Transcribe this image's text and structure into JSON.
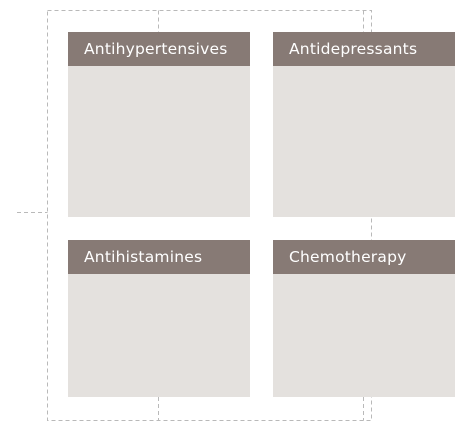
{
  "diagram": {
    "colors": {
      "header_fill": "#877a75",
      "body_fill": "#e4e1de",
      "connector_stroke": "#b9b9b9",
      "header_text": "#ffffff"
    },
    "categories": [
      {
        "label": "Antihypertensives"
      },
      {
        "label": "Antidepressants"
      },
      {
        "label": "Antihistamines"
      },
      {
        "label": "Chemotherapy"
      }
    ]
  }
}
